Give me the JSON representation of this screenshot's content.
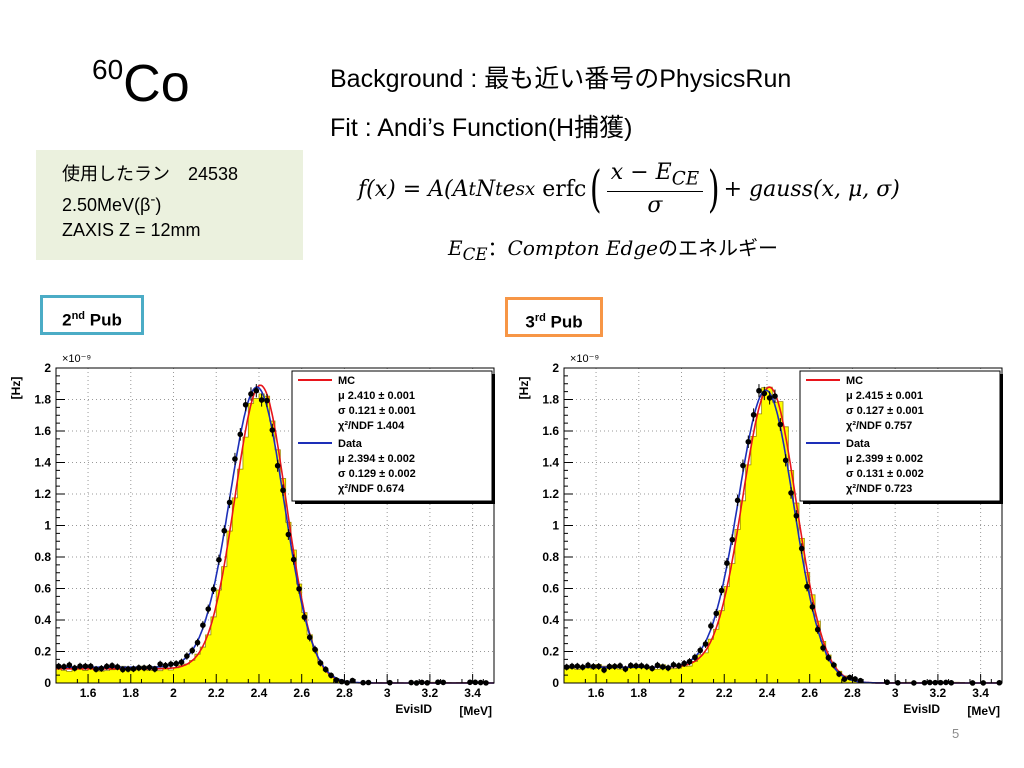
{
  "slide": {
    "isotope_mass": "60",
    "isotope_symbol": "Co",
    "background_line": "Background : 最も近い番号のPhysicsRun",
    "fit_line": "Fit : Andi’s Function(H捕獲)",
    "info": {
      "line1": "使用したラン　24538",
      "line2_main": "2.50MeV(β",
      "line2_sup": "-",
      "line2_close": ")",
      "line3": "ZAXIS Z = 12mm"
    },
    "formula": {
      "lhs": "f(x) = A(A",
      "t1": "t",
      "n": "N",
      "t2": "t",
      "e": "e",
      "exp": "sx",
      "erfc": "erfc",
      "num_x": "x − E",
      "num_sub": "CE",
      "den": "σ",
      "tail": "+ gauss(x, μ, σ)",
      "edge_e": "E",
      "edge_sub": "CE",
      "edge_colon": "：",
      "edge_name": "Compton Edge",
      "edge_jp": "のエネルギー"
    },
    "pub2": {
      "num": "2",
      "sup": "nd",
      "word": "Pub"
    },
    "pub3": {
      "num": "3",
      "sup": "rd",
      "word": "Pub"
    },
    "page_number": "5"
  },
  "colors": {
    "mc_line": "#e8141b",
    "data_line": "#1d2fb8",
    "histogram_fill": "#ffff00",
    "info_box_bg": "#ebf1de",
    "pub2_border": "#4bacc6",
    "pub3_border": "#f79646"
  },
  "chart_data": [
    {
      "type": "line",
      "xlabel": "EvisID",
      "xunit": "[MeV]",
      "ylabel": "[Hz]",
      "yexponent": "×10⁻⁹",
      "xlim": [
        1.45,
        3.5
      ],
      "ylim": [
        0,
        2.0
      ],
      "xticks": [
        "1.6",
        "1.8",
        "2",
        "2.2",
        "2.4",
        "2.6",
        "2.8",
        "3",
        "3.2",
        "3.4"
      ],
      "yticks": [
        "0",
        "0.2",
        "0.4",
        "0.6",
        "0.8",
        "1",
        "1.2",
        "1.4",
        "1.6",
        "1.8",
        "2"
      ],
      "grid": true,
      "legend_position": "top-right",
      "legend": {
        "mc_label": "MC",
        "mc_mu": "μ  2.410 ± 0.001",
        "mc_sigma": "σ  0.121 ± 0.001",
        "mc_chi2": "χ²/NDF  1.404",
        "data_label": "Data",
        "data_mu": "μ  2.394 ± 0.002",
        "data_sigma": "σ  0.129 ± 0.002",
        "data_chi2": "χ²/NDF  0.674"
      },
      "mc": {
        "name": "MC",
        "mu": 2.41,
        "sigma": 0.121,
        "amplitude": 1.82,
        "baseline": 0.09
      },
      "data": {
        "name": "Data",
        "mu": 2.394,
        "sigma": 0.129,
        "amplitude": 1.8,
        "baseline": 0.1
      }
    },
    {
      "type": "line",
      "xlabel": "EvisID",
      "xunit": "[MeV]",
      "ylabel": "[Hz]",
      "yexponent": "×10⁻⁹",
      "xlim": [
        1.45,
        3.5
      ],
      "ylim": [
        0,
        2.0
      ],
      "xticks": [
        "1.6",
        "1.8",
        "2",
        "2.2",
        "2.4",
        "2.6",
        "2.8",
        "3",
        "3.2",
        "3.4"
      ],
      "yticks": [
        "0",
        "0.2",
        "0.4",
        "0.6",
        "0.8",
        "1",
        "1.2",
        "1.4",
        "1.6",
        "1.8",
        "2"
      ],
      "grid": true,
      "legend_position": "top-right",
      "legend": {
        "mc_label": "MC",
        "mc_mu": "μ  2.415 ± 0.001",
        "mc_sigma": "σ  0.127 ± 0.001",
        "mc_chi2": "χ²/NDF  0.757",
        "data_label": "Data",
        "data_mu": "μ  2.399 ± 0.002",
        "data_sigma": "σ  0.131 ± 0.002",
        "data_chi2": "χ²/NDF  0.723"
      },
      "mc": {
        "name": "MC",
        "mu": 2.415,
        "sigma": 0.127,
        "amplitude": 1.8,
        "baseline": 0.1
      },
      "data": {
        "name": "Data",
        "mu": 2.399,
        "sigma": 0.131,
        "amplitude": 1.78,
        "baseline": 0.1
      }
    }
  ]
}
